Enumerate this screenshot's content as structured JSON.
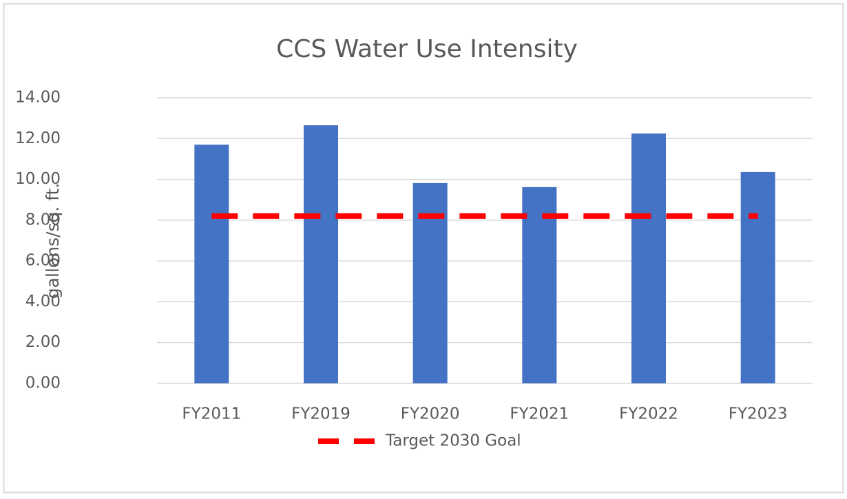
{
  "chart_data": {
    "type": "bar",
    "title": "CCS Water Use Intensity",
    "y_label": "gallons/sq. ft.",
    "categories": [
      "FY2011",
      "FY2019",
      "FY2020",
      "FY2021",
      "FY2022",
      "FY2023"
    ],
    "series": [
      {
        "type": "bar",
        "color": "#4472c4",
        "values": [
          11.7,
          12.65,
          9.82,
          9.62,
          12.25,
          10.36
        ]
      },
      {
        "type": "line",
        "name": "Target 2030 Goal",
        "color": "#ff0000",
        "dashed": true,
        "values": [
          8.2,
          8.2,
          8.2,
          8.2,
          8.2,
          8.2
        ]
      }
    ],
    "ylim": [
      0,
      14
    ],
    "yticks": [
      {
        "value": 0,
        "label": "0.00"
      },
      {
        "value": 2,
        "label": "2.00"
      },
      {
        "value": 4,
        "label": "4.00"
      },
      {
        "value": 6,
        "label": "6.00"
      },
      {
        "value": 8,
        "label": "8.00"
      },
      {
        "value": 10,
        "label": "10.00"
      },
      {
        "value": 12,
        "label": "12.00"
      },
      {
        "value": 14,
        "label": "14.00"
      }
    ],
    "grid": true,
    "legend": "bottom"
  }
}
